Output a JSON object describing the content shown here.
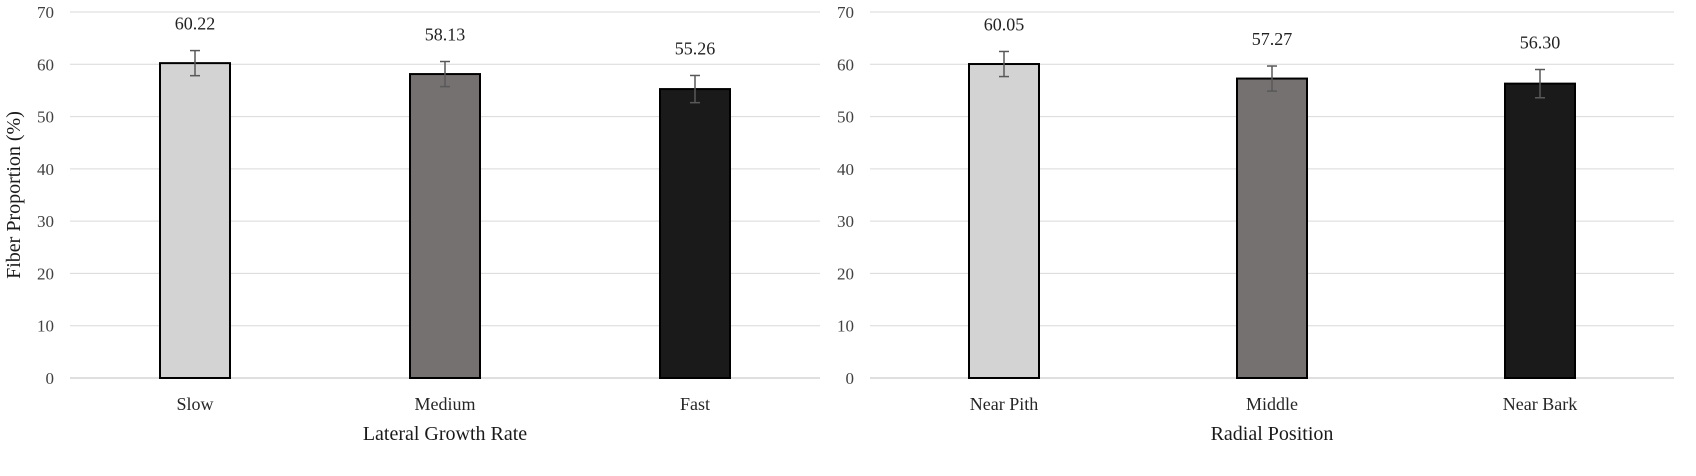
{
  "chart_data": [
    {
      "type": "bar",
      "title": "",
      "xlabel": "Lateral Growth Rate",
      "ylabel": "Fiber Proportion (%)",
      "ylim": [
        0,
        70
      ],
      "yticks": [
        0,
        10,
        20,
        30,
        40,
        50,
        60,
        70
      ],
      "grid": true,
      "categories": [
        "Slow",
        "Medium",
        "Fast"
      ],
      "values": [
        60.22,
        58.13,
        55.26
      ],
      "value_labels": [
        "60.22",
        "58.13",
        "55.26"
      ],
      "errors": [
        2.4,
        2.4,
        2.6
      ],
      "colors": [
        "#d3d3d3",
        "#767171",
        "#1a1a1a"
      ]
    },
    {
      "type": "bar",
      "title": "",
      "xlabel": "Radial Position",
      "ylabel": "",
      "ylim": [
        0,
        70
      ],
      "yticks": [
        0,
        10,
        20,
        30,
        40,
        50,
        60,
        70
      ],
      "grid": true,
      "categories": [
        "Near Pith",
        "Middle",
        "Near Bark"
      ],
      "values": [
        60.05,
        57.27,
        56.3
      ],
      "value_labels": [
        "60.05",
        "57.27",
        "56.30"
      ],
      "errors": [
        2.4,
        2.4,
        2.7
      ],
      "colors": [
        "#d3d3d3",
        "#767171",
        "#1a1a1a"
      ]
    }
  ]
}
